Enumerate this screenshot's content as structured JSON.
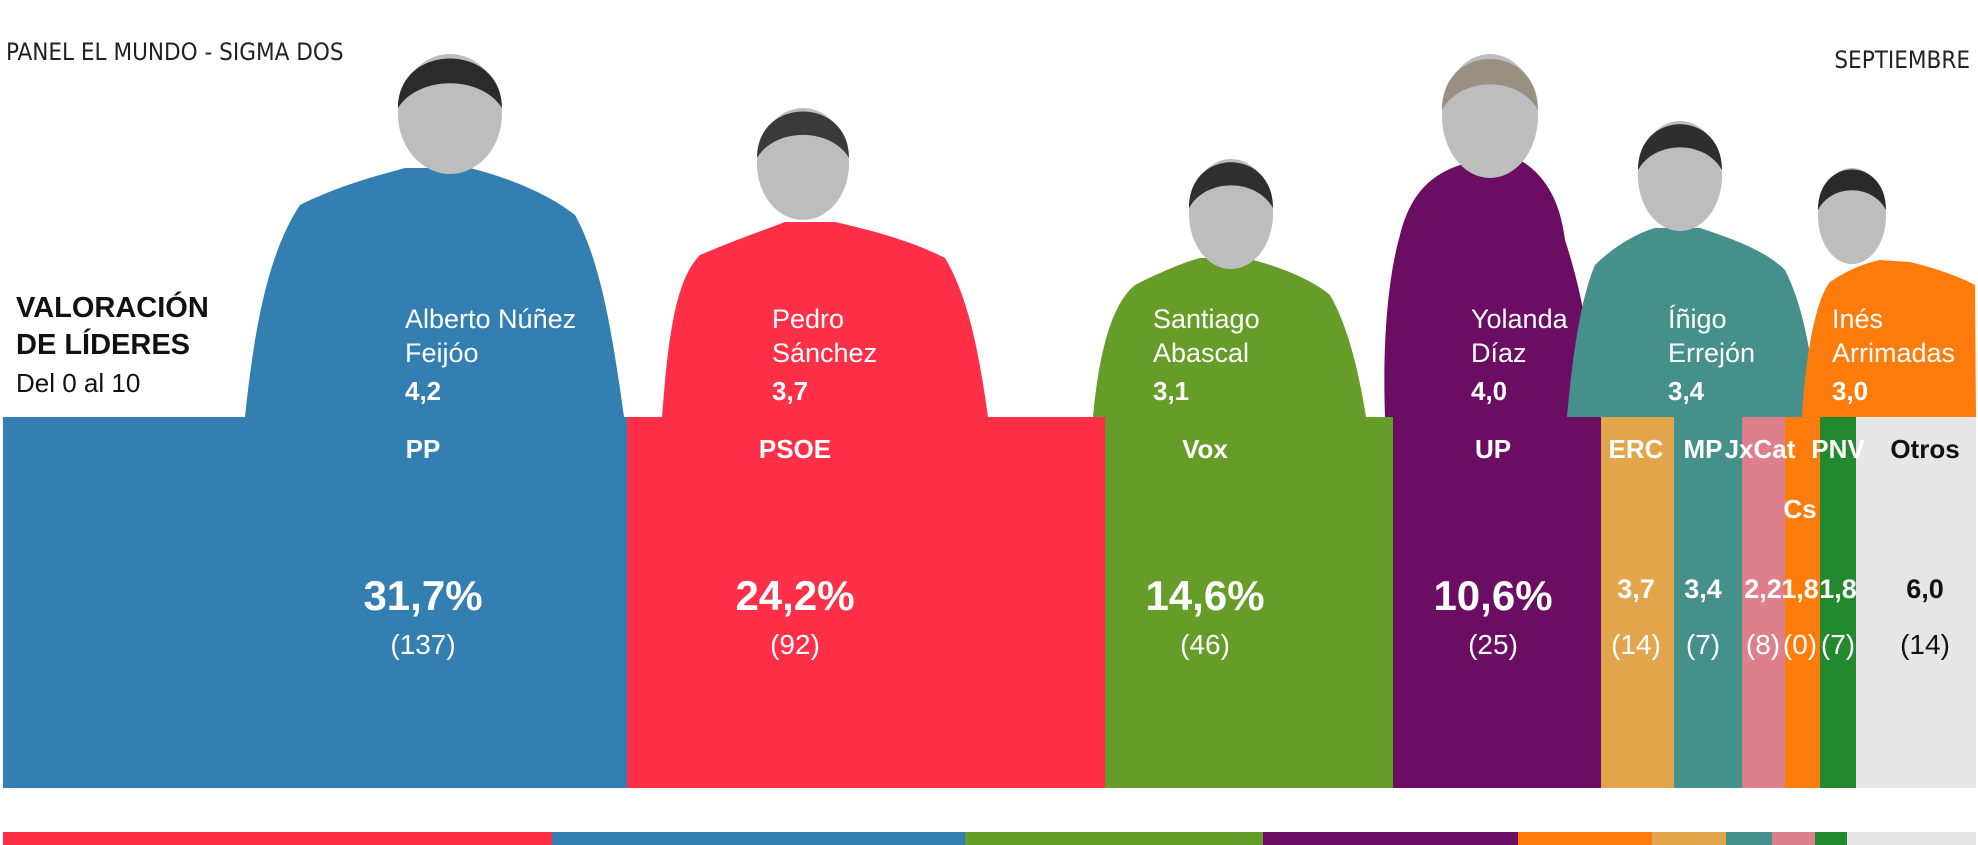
{
  "header": {
    "source": "PANEL EL MUNDO - SIGMA DOS",
    "month": "SEPTIEMBRE"
  },
  "legend": {
    "line1": "VALORACIÓN",
    "line2": "DE LÍDERES",
    "line3": "Del 0 al 10"
  },
  "colors": {
    "PP": "#337fb1",
    "PSOE": "#fe2f46",
    "Vox": "#669c28",
    "UP": "#6b0d63",
    "ERC": "#e3a54c",
    "MP": "#45908a",
    "JxCat": "#de808c",
    "Cs": "#fe7c0c",
    "PNV": "#22892e",
    "Otros": "#e6e6e6"
  },
  "chart_data": {
    "type": "bar",
    "title": "VALORACIÓN DE LÍDERES",
    "subtitle": "Del 0 al 10",
    "bars": [
      {
        "party": "PP",
        "vote": "31,7%",
        "seats": "(137)"
      },
      {
        "party": "PSOE",
        "vote": "24,2%",
        "seats": "(92)"
      },
      {
        "party": "Vox",
        "vote": "14,6%",
        "seats": "(46)"
      },
      {
        "party": "UP",
        "vote": "10,6%",
        "seats": "(25)"
      },
      {
        "party": "ERC",
        "vote": "3,7",
        "seats": "(14)"
      },
      {
        "party": "MP",
        "vote": "3,4",
        "seats": "(7)"
      },
      {
        "party": "JxCat",
        "vote": "2,2",
        "seats": "(8)"
      },
      {
        "party": "Cs",
        "vote": "1,8",
        "seats": "(0)"
      },
      {
        "party": "PNV",
        "vote": "1,8",
        "seats": "(7)"
      },
      {
        "party": "Otros",
        "vote": "6,0",
        "seats": "(14)"
      }
    ],
    "leaders": [
      {
        "party": "PP",
        "name1": "Alberto Núñez",
        "name2": "Feijóo",
        "rating": "4,2"
      },
      {
        "party": "PSOE",
        "name1": "Pedro",
        "name2": "Sánchez",
        "rating": "3,7"
      },
      {
        "party": "Vox",
        "name1": "Santiago",
        "name2": "Abascal",
        "rating": "3,1"
      },
      {
        "party": "UP",
        "name1": "Yolanda",
        "name2": "Díaz",
        "rating": "4,0"
      },
      {
        "party": "MP",
        "name1": "Íñigo",
        "name2": "Errejón",
        "rating": "3,4"
      },
      {
        "party": "Cs",
        "name1": "Inés",
        "name2": "Arrimadas",
        "rating": "3,0"
      }
    ],
    "previous_bar": [
      "PSOE",
      "PP",
      "Vox",
      "UP",
      "Cs",
      "ERC",
      "MP",
      "JxCat",
      "PNV",
      "Otros"
    ]
  }
}
